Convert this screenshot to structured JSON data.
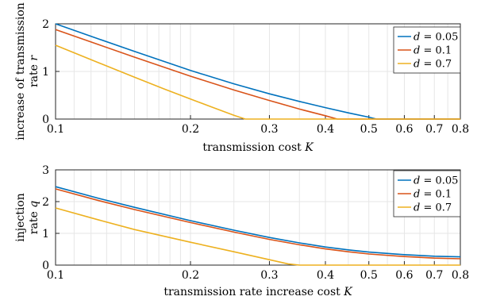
{
  "colors": {
    "series": [
      "#0072BD",
      "#D95319",
      "#EDB120"
    ],
    "grid": "#e6e6e6",
    "axis": "#262626"
  },
  "chart_data": [
    {
      "type": "line",
      "xscale": "log",
      "xlim": [
        0.1,
        0.8
      ],
      "ylim": [
        0,
        2
      ],
      "xticks": [
        0.1,
        0.2,
        0.3,
        0.4,
        0.5,
        0.6,
        0.7,
        0.8
      ],
      "xtick_labels": [
        "0.1",
        "0.2",
        "0.3",
        "0.4",
        "0.5",
        "0.6",
        "0.7",
        "0.8"
      ],
      "yticks": [
        0,
        1,
        2
      ],
      "ytick_labels": [
        "0",
        "1",
        "2"
      ],
      "xlabel": {
        "text": "transmission cost ",
        "var": "K"
      },
      "ylabel": {
        "line1": "increase of transmission",
        "line2": "rate ",
        "var": "r"
      },
      "grid": true,
      "legend_position": "top-right",
      "legend": [
        "d = 0.05",
        "d = 0.1",
        "d = 0.7"
      ],
      "series": [
        {
          "name": "d = 0.05",
          "x": [
            0.1,
            0.125,
            0.15,
            0.2,
            0.25,
            0.3,
            0.35,
            0.4,
            0.45,
            0.5,
            0.52,
            0.6,
            0.7,
            0.8
          ],
          "y": [
            2.0,
            1.68,
            1.42,
            1.02,
            0.74,
            0.53,
            0.37,
            0.24,
            0.13,
            0.04,
            0.0,
            0.0,
            0.0,
            0.0
          ]
        },
        {
          "name": "d = 0.1",
          "x": [
            0.1,
            0.125,
            0.15,
            0.2,
            0.25,
            0.3,
            0.35,
            0.4,
            0.425,
            0.5,
            0.6,
            0.7,
            0.8
          ],
          "y": [
            1.88,
            1.56,
            1.3,
            0.9,
            0.61,
            0.39,
            0.21,
            0.07,
            0.0,
            0.0,
            0.0,
            0.0,
            0.0
          ]
        },
        {
          "name": "d = 0.7",
          "x": [
            0.1,
            0.125,
            0.15,
            0.175,
            0.2,
            0.225,
            0.25,
            0.265,
            0.3,
            0.4,
            0.5,
            0.6,
            0.7,
            0.8
          ],
          "y": [
            1.55,
            1.18,
            0.88,
            0.63,
            0.42,
            0.24,
            0.08,
            0.0,
            0.0,
            0.0,
            0.0,
            0.0,
            0.0,
            0.0
          ]
        }
      ]
    },
    {
      "type": "line",
      "xscale": "log",
      "xlim": [
        0.1,
        0.8
      ],
      "ylim": [
        0,
        3
      ],
      "xticks": [
        0.1,
        0.2,
        0.3,
        0.4,
        0.5,
        0.6,
        0.7,
        0.8
      ],
      "xtick_labels": [
        "0.1",
        "0.2",
        "0.3",
        "0.4",
        "0.5",
        "0.6",
        "0.7",
        "0.8"
      ],
      "yticks": [
        0,
        1,
        2,
        3
      ],
      "ytick_labels": [
        "0",
        "1",
        "2",
        "3"
      ],
      "xlabel": {
        "text": "transmission rate increase cost ",
        "var": "K"
      },
      "ylabel": {
        "line1": "injection",
        "line2": "rate ",
        "var": "q"
      },
      "grid": true,
      "legend_position": "top-right",
      "legend": [
        "d = 0.05",
        "d = 0.1",
        "d = 0.7"
      ],
      "series": [
        {
          "name": "d = 0.05",
          "x": [
            0.1,
            0.125,
            0.15,
            0.2,
            0.25,
            0.3,
            0.35,
            0.4,
            0.45,
            0.5,
            0.6,
            0.7,
            0.8
          ],
          "y": [
            2.47,
            2.1,
            1.82,
            1.4,
            1.1,
            0.87,
            0.7,
            0.57,
            0.48,
            0.41,
            0.33,
            0.28,
            0.26
          ]
        },
        {
          "name": "d = 0.1",
          "x": [
            0.1,
            0.125,
            0.15,
            0.2,
            0.25,
            0.3,
            0.35,
            0.4,
            0.45,
            0.5,
            0.6,
            0.7,
            0.8
          ],
          "y": [
            2.4,
            2.03,
            1.75,
            1.34,
            1.04,
            0.81,
            0.64,
            0.51,
            0.42,
            0.35,
            0.27,
            0.22,
            0.2
          ]
        },
        {
          "name": "d = 0.7",
          "x": [
            0.1,
            0.125,
            0.15,
            0.2,
            0.25,
            0.3,
            0.33,
            0.35,
            0.4,
            0.5,
            0.6,
            0.7,
            0.8
          ],
          "y": [
            1.8,
            1.42,
            1.12,
            0.72,
            0.42,
            0.17,
            0.04,
            0.0,
            0.0,
            0.0,
            0.0,
            0.0,
            0.0
          ]
        }
      ]
    }
  ]
}
